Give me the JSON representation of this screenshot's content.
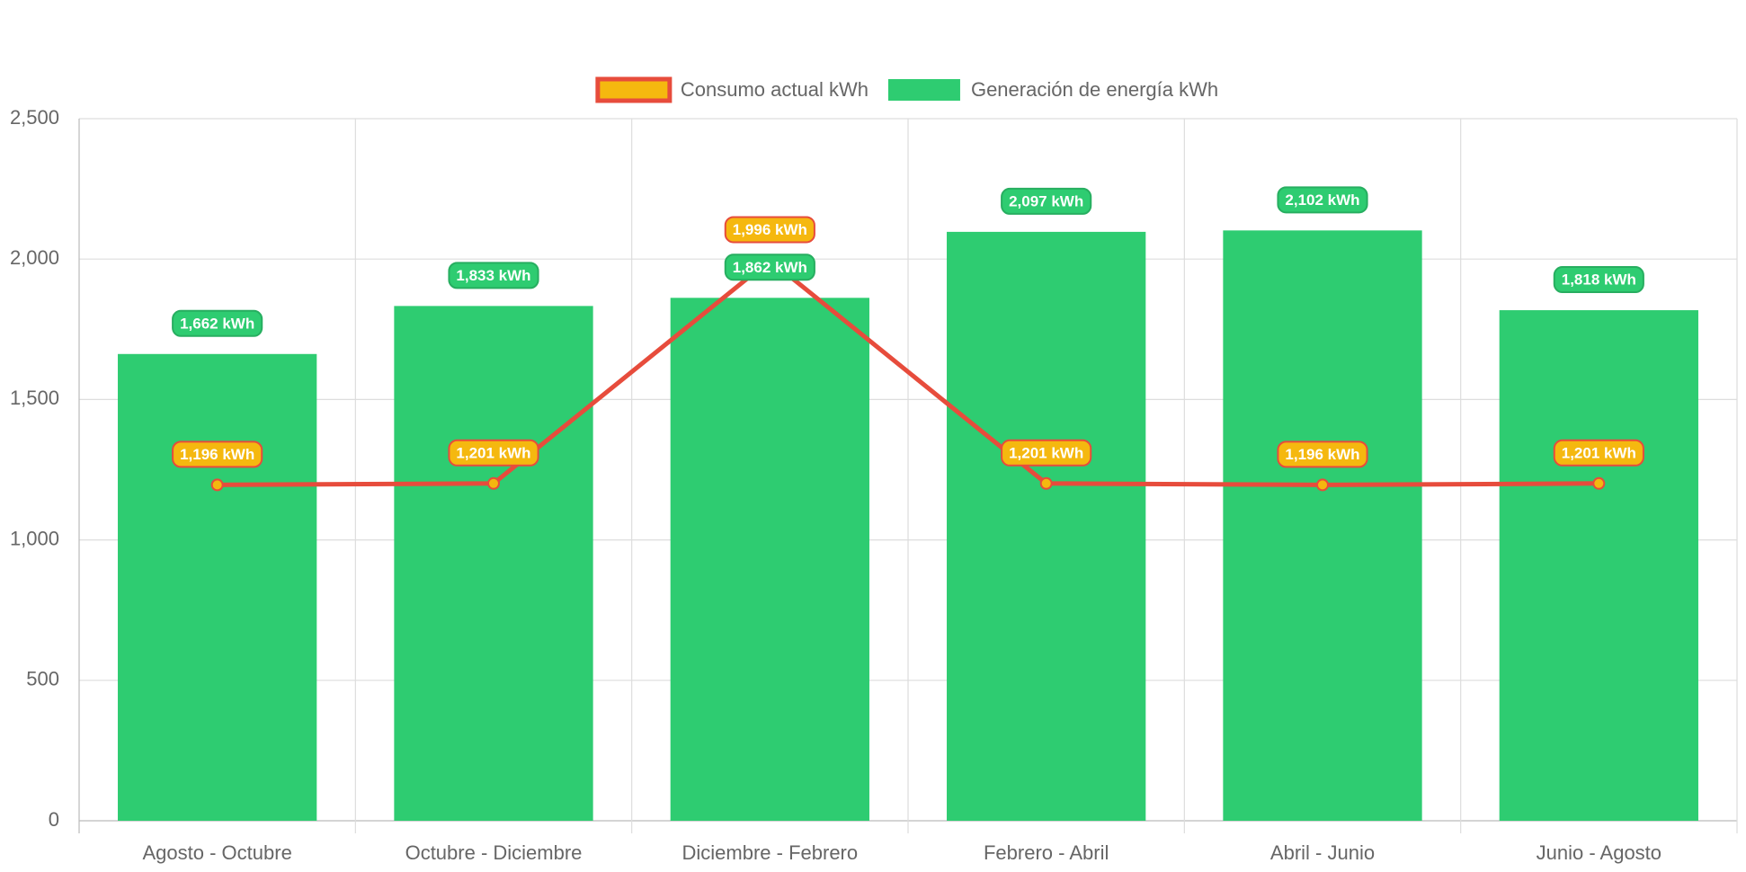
{
  "chart_data": {
    "type": "bar",
    "categories": [
      "Agosto - Octubre",
      "Octubre - Diciembre",
      "Diciembre - Febrero",
      "Febrero - Abril",
      "Abril - Junio",
      "Junio - Agosto"
    ],
    "series": [
      {
        "name": "Consumo actual kWh",
        "type": "line",
        "color": "#e74c3c",
        "point_color": "#f5b80f",
        "values": [
          1196,
          1201,
          1996,
          1201,
          1196,
          1201
        ],
        "value_labels": [
          "1,196 kWh",
          "1,201 kWh",
          "1,996 kWh",
          "1,201 kWh",
          "1,196 kWh",
          "1,201 kWh"
        ]
      },
      {
        "name": "Generación de energía kWh",
        "type": "bar",
        "color": "#2ecc71",
        "values": [
          1662,
          1833,
          1862,
          2097,
          2102,
          1818
        ],
        "value_labels": [
          "1,662 kWh",
          "1,833 kWh",
          "1,862 kWh",
          "2,097 kWh",
          "2,102 kWh",
          "1,818 kWh"
        ]
      }
    ],
    "ylim": [
      0,
      2500
    ],
    "yticks": [
      0,
      500,
      {
        "value": 1000,
        "label": "1,000"
      },
      {
        "value": 1500,
        "label": "1,500"
      },
      {
        "value": 2000,
        "label": "2,000"
      },
      {
        "value": 2500,
        "label": "2,500"
      }
    ],
    "grid": true,
    "legend": "top"
  }
}
